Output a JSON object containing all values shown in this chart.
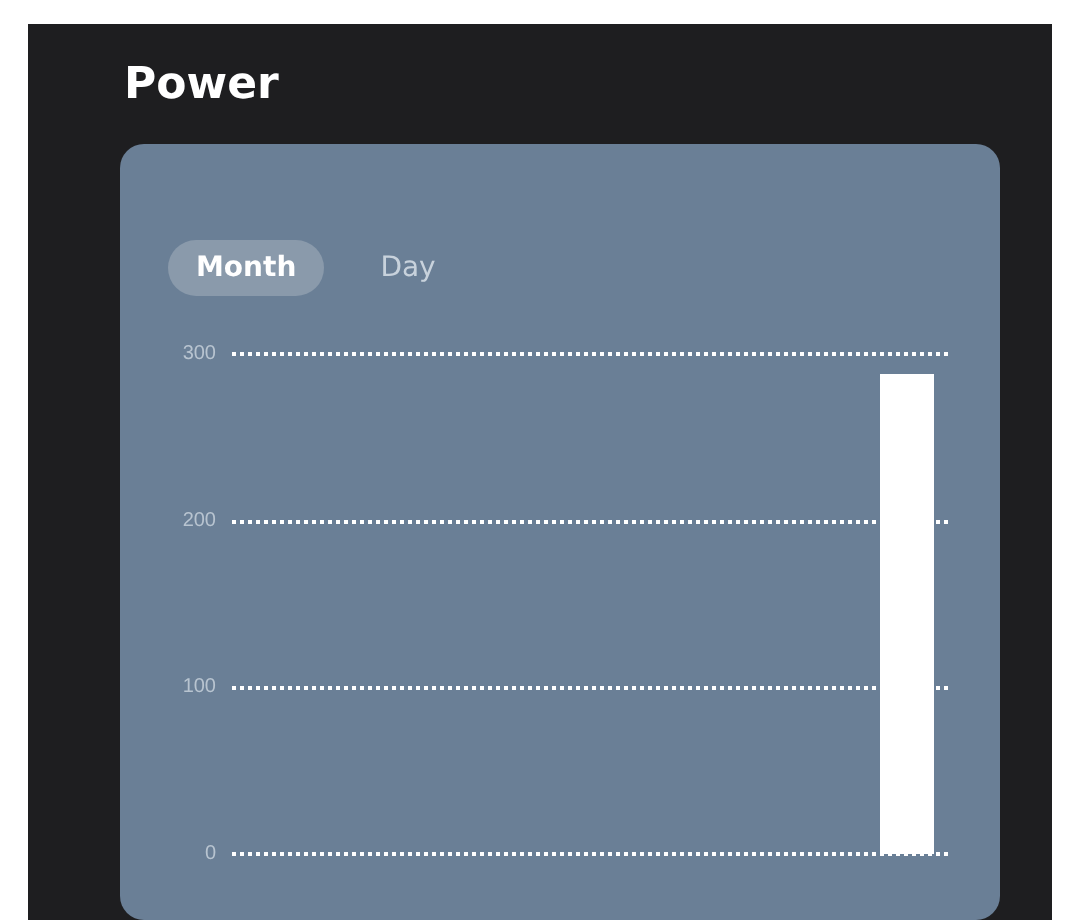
{
  "chart_data": {
    "type": "bar",
    "title": "Power",
    "annotations": [
      "Month",
      "Day"
    ],
    "categories": [
      null,
      null,
      null,
      null,
      null,
      null,
      null,
      null
    ],
    "values": [
      0,
      0,
      0,
      0,
      0,
      0,
      0,
      288
    ],
    "color": "#ffffff",
    "ylim": [
      0,
      300
    ],
    "yticks": [
      0,
      100,
      200,
      300
    ],
    "grid": "y"
  }
}
